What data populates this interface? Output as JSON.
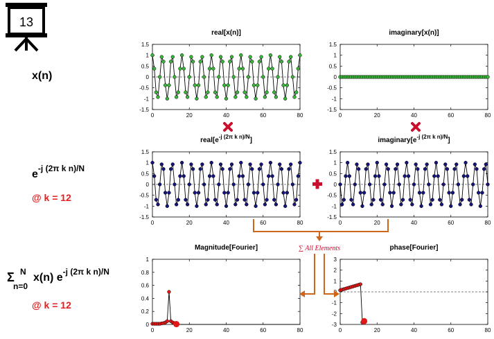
{
  "slide_number": "13",
  "rows": {
    "row1": {
      "label": "x(n)"
    },
    "row2": {
      "label_base": "e",
      "label_exp": "-j (2π k n)/N",
      "k_note": "@ k = 12"
    },
    "row3": {
      "sigma": "Σ",
      "sum_upper": "N",
      "sum_lower": "n=0",
      "label_rest": "x(n) e",
      "label_exp": "-j (2π k n)/N",
      "k_note": "@ k = 12"
    }
  },
  "annotations": {
    "sum_all": "∑ All Elements"
  },
  "colors": {
    "green": "#39b539",
    "blue": "#14147a",
    "red_marker": "#e01818",
    "arrow": "#d0651a",
    "accent_red": "#e02020"
  },
  "chart_data": [
    {
      "type": "line",
      "id": "real_x",
      "title": "real[x(n)]",
      "xlim": [
        0,
        80
      ],
      "ylim": [
        -1.5,
        1.5
      ],
      "xticks": [
        "0",
        "20",
        "40",
        "60",
        "80"
      ],
      "yticks": [
        "1.5",
        "1",
        "0.5",
        "0",
        "-0.5",
        "-1",
        "-1.5"
      ],
      "formula": {
        "kind": "cos",
        "freq": 12,
        "N": 64,
        "amp": 1,
        "n_points": 81
      },
      "marker_color": "#39b539"
    },
    {
      "type": "line",
      "id": "imag_x",
      "title": "imaginary[x(n)]",
      "xlim": [
        0,
        80
      ],
      "ylim": [
        -1.5,
        1.5
      ],
      "xticks": [
        "0",
        "20",
        "40",
        "60",
        "80"
      ],
      "yticks": [
        "1.5",
        "1",
        "0.5",
        "0",
        "-0.5",
        "-1",
        "-1.5"
      ],
      "formula": {
        "kind": "zero",
        "n_points": 81
      },
      "marker_color": "#39b539"
    },
    {
      "type": "line",
      "id": "real_e",
      "title_base": "real[e",
      "title_exp": "-j (2π k n)/N",
      "title_end": "]",
      "xlim": [
        0,
        80
      ],
      "ylim": [
        -1.5,
        1.5
      ],
      "xticks": [
        "0",
        "20",
        "40",
        "60",
        "80"
      ],
      "yticks": [
        "1.5",
        "1",
        "0.5",
        "0",
        "-0.5",
        "-1",
        "-1.5"
      ],
      "formula": {
        "kind": "cos",
        "freq": 12,
        "N": 64,
        "amp": 1,
        "n_points": 81
      },
      "marker_color": "#14147a"
    },
    {
      "type": "line",
      "id": "imag_e",
      "title_base": "imaginary[e",
      "title_exp": "-j (2π k n)/N",
      "title_end": "]",
      "xlim": [
        0,
        80
      ],
      "ylim": [
        -1.5,
        1.5
      ],
      "xticks": [
        "0",
        "20",
        "40",
        "60",
        "80"
      ],
      "yticks": [
        "1.5",
        "1",
        "0.5",
        "0",
        "-0.5",
        "-1",
        "-1.5"
      ],
      "formula": {
        "kind": "sin",
        "freq": 12,
        "N": 64,
        "amp": 1,
        "n_points": 81
      },
      "marker_color": "#14147a"
    },
    {
      "type": "line",
      "id": "magnitude",
      "title": "Magnitude[Fourier]",
      "xlim": [
        0,
        80
      ],
      "ylim": [
        0,
        1
      ],
      "xticks": [
        "0",
        "20",
        "40",
        "60",
        "80"
      ],
      "yticks": [
        "1",
        "0.8",
        "0.6",
        "0.4",
        "0.2",
        "0"
      ],
      "x": [
        0,
        1,
        2,
        3,
        4,
        5,
        6,
        7,
        8,
        9,
        10,
        11,
        12,
        13,
        14,
        15,
        20,
        25,
        30,
        35,
        40,
        45,
        50,
        55,
        60,
        65,
        70,
        75,
        80
      ],
      "y": [
        0.01,
        0.01,
        0.01,
        0.01,
        0.01,
        0.015,
        0.02,
        0.03,
        0.05,
        0.5,
        0.05,
        0.03,
        0.02,
        0,
        0,
        0,
        0,
        0,
        0,
        0,
        0,
        0,
        0,
        0,
        0,
        0,
        0,
        0,
        0
      ],
      "marker_x": [
        0,
        1,
        2,
        3,
        4,
        5,
        6,
        7,
        8,
        9,
        10,
        11,
        12
      ],
      "highlight": {
        "x": 13,
        "y": 0.005
      },
      "marker_color": "#e01818"
    },
    {
      "type": "line",
      "id": "phase",
      "title": "phase[Fourier]",
      "xlim": [
        0,
        80
      ],
      "ylim": [
        -3,
        3
      ],
      "xticks": [
        "0",
        "20",
        "40",
        "60",
        "80"
      ],
      "yticks": [
        "3",
        "2",
        "1",
        "0",
        "-1",
        "-2",
        "-3"
      ],
      "x": [
        0,
        1,
        2,
        3,
        4,
        5,
        6,
        7,
        8,
        9,
        10,
        11,
        12,
        13
      ],
      "y": [
        0.15,
        0.2,
        0.25,
        0.3,
        0.35,
        0.4,
        0.45,
        0.5,
        0.55,
        0.6,
        0.65,
        0.7,
        -2.8,
        -2.7
      ],
      "highlight": {
        "x": 13,
        "y": -2.7
      },
      "marker_color": "#e01818"
    }
  ]
}
